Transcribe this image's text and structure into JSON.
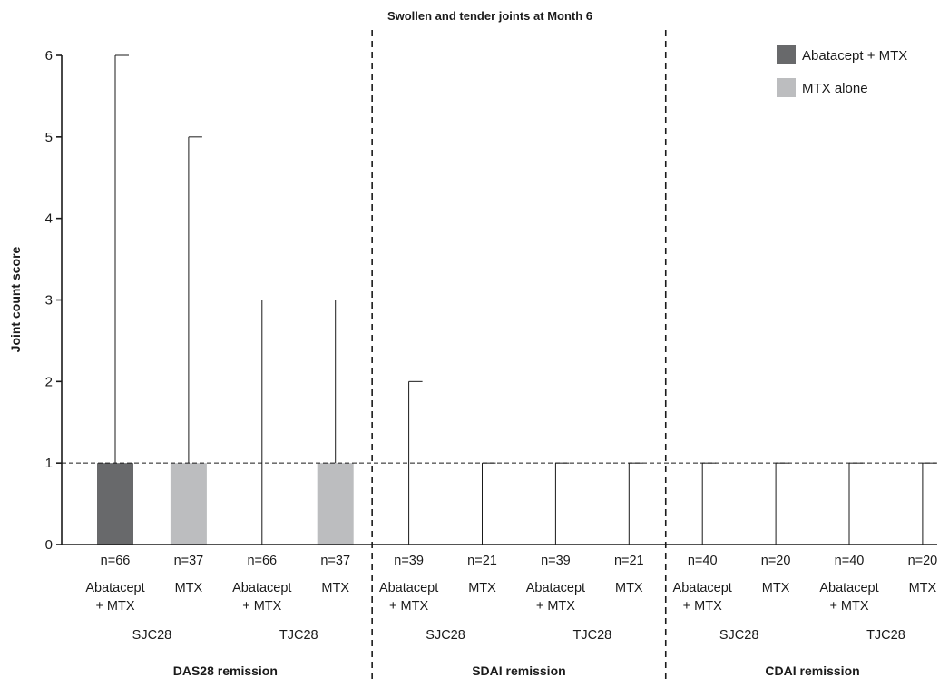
{
  "chart_data": {
    "type": "bar",
    "title": "Swollen and tender joints at Month 6",
    "ylabel": "Joint count score",
    "xlabel": "",
    "ylim": [
      0,
      6
    ],
    "yticks": [
      0,
      1,
      2,
      3,
      4,
      5,
      6
    ],
    "reference_line": 1,
    "grid": false,
    "legend_position": "top-right",
    "legend": [
      {
        "name": "Abatacept + MTX",
        "color": "#68696b"
      },
      {
        "name": "MTX alone",
        "color": "#bcbdbf"
      }
    ],
    "groups": [
      {
        "label": "DAS28 remission",
        "subgroups": [
          "SJC28",
          "TJC28"
        ]
      },
      {
        "label": "SDAI remission",
        "subgroups": [
          "SJC28",
          "TJC28"
        ]
      },
      {
        "label": "CDAI remission",
        "subgroups": [
          "SJC28",
          "TJC28"
        ]
      }
    ],
    "bars": [
      {
        "n": "n=66",
        "label1": "Abatacept",
        "label2": "+ MTX",
        "series": 0,
        "value": 1,
        "error_upper": 6
      },
      {
        "n": "n=37",
        "label1": "MTX",
        "label2": "",
        "series": 1,
        "value": 1,
        "error_upper": 5
      },
      {
        "n": "n=66",
        "label1": "Abatacept",
        "label2": "+ MTX",
        "series": 0,
        "value": 0,
        "error_upper": 3
      },
      {
        "n": "n=37",
        "label1": "MTX",
        "label2": "",
        "series": 1,
        "value": 1,
        "error_upper": 3
      },
      {
        "n": "n=39",
        "label1": "Abatacept",
        "label2": "+ MTX",
        "series": 0,
        "value": 0,
        "error_upper": 2
      },
      {
        "n": "n=21",
        "label1": "MTX",
        "label2": "",
        "series": 1,
        "value": 0,
        "error_upper": 1
      },
      {
        "n": "n=39",
        "label1": "Abatacept",
        "label2": "+ MTX",
        "series": 0,
        "value": 0,
        "error_upper": 1
      },
      {
        "n": "n=21",
        "label1": "MTX",
        "label2": "",
        "series": 1,
        "value": 0,
        "error_upper": 1
      },
      {
        "n": "n=40",
        "label1": "Abatacept",
        "label2": "+ MTX",
        "series": 0,
        "value": 0,
        "error_upper": 1
      },
      {
        "n": "n=20",
        "label1": "MTX",
        "label2": "",
        "series": 1,
        "value": 0,
        "error_upper": 1
      },
      {
        "n": "n=40",
        "label1": "Abatacept",
        "label2": "+ MTX",
        "series": 0,
        "value": 0,
        "error_upper": 1
      },
      {
        "n": "n=20",
        "label1": "MTX",
        "label2": "",
        "series": 1,
        "value": 0,
        "error_upper": 1
      }
    ]
  }
}
